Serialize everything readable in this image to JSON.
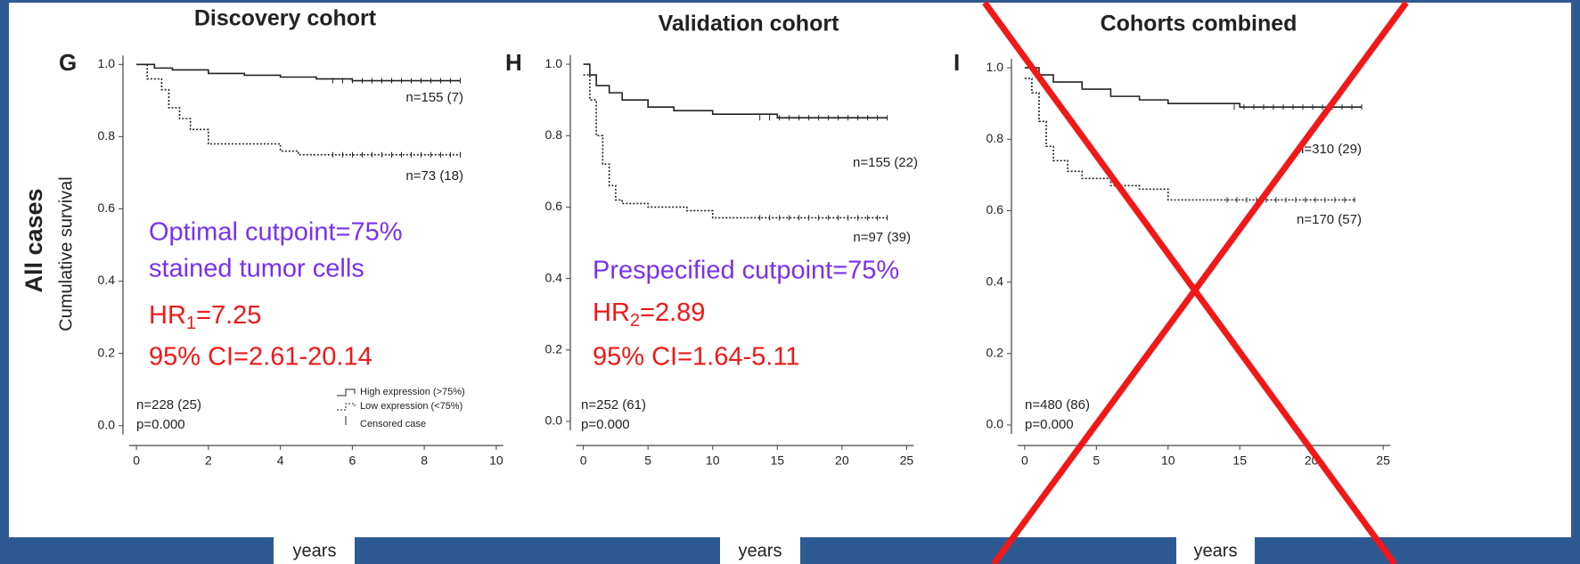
{
  "chart_data": [
    {
      "type": "line",
      "panel": "G",
      "title": "Discovery cohort",
      "row_label": "All cases",
      "ylabel": "Cumulative survival",
      "xlabel": "years",
      "xlim": [
        -0.3,
        10.3
      ],
      "ylim": [
        -0.06,
        1.06
      ],
      "xticks": [
        0,
        2,
        4,
        6,
        8,
        10
      ],
      "yticks": [
        {
          "value": 0,
          "label": "0.0"
        },
        0.2,
        0.4,
        0.6,
        0.8,
        {
          "value": 1,
          "label": "1.0"
        }
      ],
      "series": [
        {
          "name": "High expression (>75%)",
          "color": "#222222",
          "style": "solid",
          "n_label": "n=155 (7)",
          "x": [
            0,
            0.5,
            1,
            2,
            3,
            4,
            5,
            6,
            9
          ],
          "values": [
            1.0,
            0.99,
            0.985,
            0.975,
            0.97,
            0.965,
            0.96,
            0.955,
            0.955
          ]
        },
        {
          "name": "Low expression (<75%)",
          "color": "#222222",
          "style": "dotted",
          "n_label": "n=73 (18)",
          "x": [
            0,
            0.3,
            0.7,
            0.9,
            1.2,
            1.5,
            2,
            3,
            4,
            4.5,
            9
          ],
          "values": [
            1.0,
            0.96,
            0.93,
            0.88,
            0.85,
            0.82,
            0.78,
            0.78,
            0.76,
            0.75,
            0.75
          ]
        }
      ],
      "legend": "lower right",
      "legend_extra": "Censored case",
      "total": "n=228 (25)",
      "p": "p=0.000",
      "cutpoint": [
        "Optimal cutpoint=75%",
        "stained tumor cells"
      ],
      "hr": {
        "label": "HR",
        "sub": "1",
        "value": "=7.25"
      },
      "ci": "95% CI=2.61-20.14"
    },
    {
      "type": "line",
      "panel": "H",
      "title": "Validation cohort",
      "xlabel": "years",
      "xlim": [
        -0.8,
        25.8
      ],
      "ylim": [
        -0.06,
        1.06
      ],
      "xticks": [
        0,
        5,
        10,
        15,
        20,
        25
      ],
      "yticks": [
        {
          "value": 0,
          "label": "0.0"
        },
        0.2,
        0.4,
        0.6,
        0.8,
        {
          "value": 1,
          "label": "1.0"
        }
      ],
      "series": [
        {
          "color": "#222222",
          "style": "solid",
          "n_label": "n=155 (22)",
          "x": [
            0,
            0.5,
            1,
            2,
            3,
            5,
            7,
            10,
            15,
            23.5
          ],
          "values": [
            1.0,
            0.97,
            0.94,
            0.92,
            0.9,
            0.88,
            0.87,
            0.86,
            0.85,
            0.85
          ]
        },
        {
          "color": "#222222",
          "style": "dotted",
          "n_label": "n=97 (39)",
          "x": [
            0,
            0.5,
            1,
            1.5,
            2,
            2.5,
            3,
            5,
            8,
            10,
            23.5
          ],
          "values": [
            0.97,
            0.9,
            0.8,
            0.72,
            0.66,
            0.62,
            0.61,
            0.6,
            0.59,
            0.57,
            0.57
          ]
        }
      ],
      "total": "n=252 (61)",
      "p": "p=0.000",
      "cutpoint": [
        "Prespecified cutpoint=75%"
      ],
      "hr": {
        "label": "HR",
        "sub": "2",
        "value": "=2.89"
      },
      "ci": "95% CI=1.64-5.11"
    },
    {
      "type": "line",
      "panel": "I",
      "title": "Cohorts combined",
      "xlabel": "years",
      "xlim": [
        -0.8,
        25.8
      ],
      "ylim": [
        -0.06,
        1.06
      ],
      "xticks": [
        0,
        5,
        10,
        15,
        20,
        25
      ],
      "yticks": [
        {
          "value": 0,
          "label": "0.0"
        },
        0.2,
        0.4,
        0.6,
        0.8,
        {
          "value": 1,
          "label": "1.0"
        }
      ],
      "series": [
        {
          "color": "#222222",
          "style": "solid",
          "n_label": "n=310 (29)",
          "x": [
            0,
            1,
            2,
            4,
            6,
            8,
            10,
            15,
            20,
            23.5
          ],
          "values": [
            1.0,
            0.98,
            0.96,
            0.94,
            0.92,
            0.91,
            0.9,
            0.89,
            0.89,
            0.89
          ]
        },
        {
          "color": "#222222",
          "style": "dotted",
          "n_label": "n=170 (57)",
          "x": [
            0,
            0.5,
            1,
            1.5,
            2,
            3,
            4,
            6,
            8,
            10,
            23
          ],
          "values": [
            0.97,
            0.93,
            0.85,
            0.78,
            0.74,
            0.71,
            0.69,
            0.67,
            0.66,
            0.63,
            0.63
          ]
        }
      ],
      "total": "n=480 (86)",
      "p": "p=0.000"
    }
  ]
}
